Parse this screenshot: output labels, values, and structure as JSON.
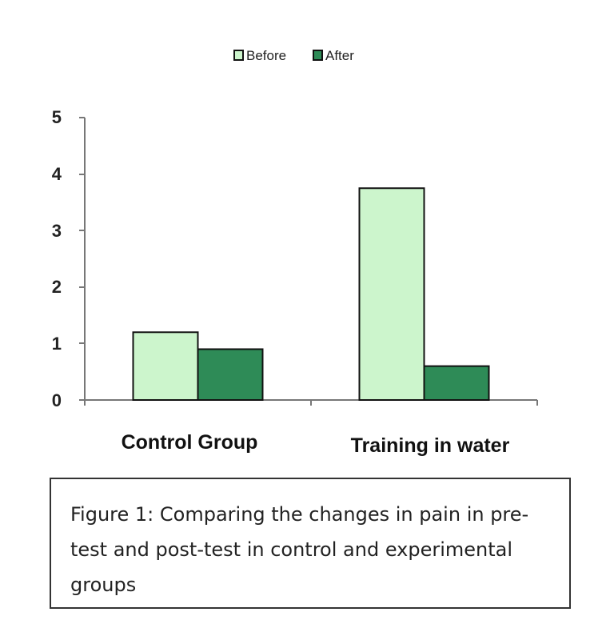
{
  "chart_data": {
    "type": "bar",
    "categories": [
      "Control Group",
      "Training in water"
    ],
    "series": [
      {
        "name": "Before",
        "values": [
          1.2,
          3.75
        ],
        "color": "#ccf5cc"
      },
      {
        "name": "After",
        "values": [
          0.9,
          0.6
        ],
        "color": "#2e8b57"
      }
    ],
    "ylim": [
      0,
      5
    ],
    "yticks": [
      "0",
      "1",
      "2",
      "3",
      "4",
      "5"
    ],
    "legend_position": "top-center",
    "grid": false
  },
  "caption": {
    "text": "Figure 1: Comparing the changes in pain in pre-test and post-test in control and experimental groups"
  }
}
